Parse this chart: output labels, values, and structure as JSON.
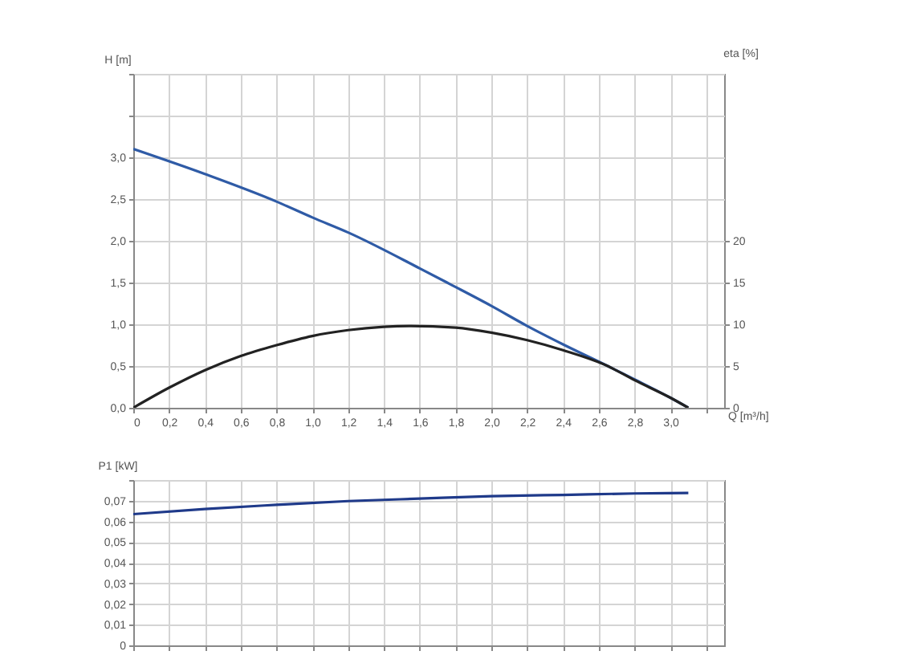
{
  "chart_data": [
    {
      "type": "line",
      "xlabel": "Q [m³/h]",
      "ylabel": "H [m]",
      "y2label": "eta [%]",
      "grid": true,
      "line_style": "solid",
      "marker": "none",
      "xlim": [
        0,
        3.3
      ],
      "xticks": [
        0,
        {
          "value": 0.2,
          "label": "0,2"
        },
        {
          "value": 0.4,
          "label": "0,4"
        },
        {
          "value": 0.6,
          "label": "0,6"
        },
        {
          "value": 0.8,
          "label": "0,8"
        },
        {
          "value": 1.0,
          "label": "1,0"
        },
        {
          "value": 1.2,
          "label": "1,2"
        },
        {
          "value": 1.4,
          "label": "1,4"
        },
        {
          "value": 1.6,
          "label": "1,6"
        },
        {
          "value": 1.8,
          "label": "1,8"
        },
        {
          "value": 2.0,
          "label": "2,0"
        },
        {
          "value": 2.2,
          "label": "2,2"
        },
        {
          "value": 2.4,
          "label": "2,4"
        },
        {
          "value": 2.6,
          "label": "2,6"
        },
        {
          "value": 2.8,
          "label": "2,8"
        },
        {
          "value": 3.0,
          "label": "3,0"
        },
        {
          "value": 3.2,
          "label": null
        }
      ],
      "ylim": [
        0,
        4
      ],
      "yticks": [
        {
          "value": 0,
          "label": "0,0"
        },
        {
          "value": 0.5,
          "label": "0,5"
        },
        {
          "value": 1.0,
          "label": "1,0"
        },
        {
          "value": 1.5,
          "label": "1,5"
        },
        {
          "value": 2.0,
          "label": "2,0"
        },
        {
          "value": 2.5,
          "label": "2,5"
        },
        {
          "value": 3.0,
          "label": "3,0"
        },
        {
          "value": 3.5,
          "label": null
        },
        {
          "value": 4.0,
          "label": null
        }
      ],
      "y2lim": [
        0,
        40
      ],
      "y2ticks": [
        0,
        5,
        10,
        15,
        20
      ],
      "series": [
        {
          "color": "#2f5ba6",
          "x": [
            0,
            0.4,
            0.8,
            1.0,
            1.2,
            1.6,
            1.77,
            2.0,
            2.2,
            2.4,
            2.65,
            2.8,
            3.0,
            3.1
          ],
          "values": [
            3.1,
            2.8,
            2.47,
            2.28,
            2.1,
            1.67,
            1.48,
            1.22,
            0.98,
            0.76,
            0.5,
            0.34,
            0.12,
            0
          ]
        },
        {
          "color": "#222222",
          "axis": "y2",
          "x": [
            0,
            0.2,
            0.4,
            0.6,
            0.8,
            1.0,
            1.2,
            1.4,
            1.55,
            1.8,
            2.0,
            2.2,
            2.4,
            2.65,
            2.8,
            3.0,
            3.1
          ],
          "values": [
            0,
            2.4,
            4.5,
            6.2,
            7.5,
            8.6,
            9.3,
            9.7,
            9.8,
            9.6,
            9.0,
            8.1,
            6.9,
            5.0,
            3.3,
            1.2,
            0
          ]
        }
      ]
    },
    {
      "type": "line",
      "ylabel": "P1 [kW]",
      "grid": true,
      "tick_labels": "y",
      "line_style": "solid",
      "marker": "none",
      "xlim": [
        0,
        3.3
      ],
      "xticks": [
        0,
        0.2,
        0.4,
        0.6,
        0.8,
        1.0,
        1.2,
        1.4,
        1.6,
        1.8,
        2.0,
        2.2,
        2.4,
        2.6,
        2.8,
        3.0,
        3.2
      ],
      "ylim": [
        0,
        0.08
      ],
      "yticks": [
        0,
        {
          "value": 0.01,
          "label": "0,01"
        },
        {
          "value": 0.02,
          "label": "0,02"
        },
        {
          "value": 0.03,
          "label": "0,03"
        },
        {
          "value": 0.04,
          "label": "0,04"
        },
        {
          "value": 0.05,
          "label": "0,05"
        },
        {
          "value": 0.06,
          "label": "0,06"
        },
        {
          "value": 0.07,
          "label": "0,07"
        },
        {
          "value": 0.08,
          "label": null
        }
      ],
      "series": [
        {
          "color": "#1f3a8a",
          "x": [
            0,
            0.4,
            0.8,
            1.2,
            1.6,
            2.0,
            2.4,
            2.8,
            3.1
          ],
          "values": [
            0.0635,
            0.066,
            0.068,
            0.0698,
            0.071,
            0.0722,
            0.0728,
            0.0735,
            0.0737
          ]
        }
      ]
    }
  ]
}
